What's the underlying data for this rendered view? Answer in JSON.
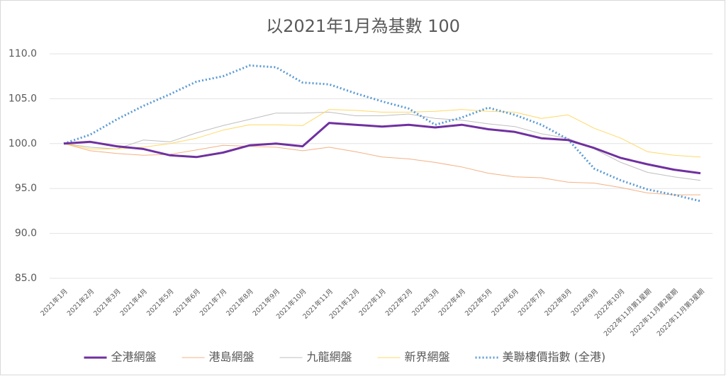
{
  "chart_data": {
    "type": "line",
    "title": "以2021年1月為基數 100",
    "categories": [
      "2021年1月",
      "2021年2月",
      "2021年3月",
      "2021年4月",
      "2021年5月",
      "2021年6月",
      "2021年7月",
      "2021年8月",
      "2021年9月",
      "2021年10月",
      "2021年11月",
      "2021年12月",
      "2022年1月",
      "2022年2月",
      "2022年3月",
      "2022年4月",
      "2022年5月",
      "2022年6月",
      "2022年7月",
      "2022年8月",
      "2022年9月",
      "2022年10月",
      "2022年11月第1星期",
      "2022年11月第2星期",
      "2022年11月第3星期"
    ],
    "series": [
      {
        "name": "全港網盤",
        "color": "#7030a0",
        "width": 3,
        "dash": "solid",
        "values": [
          100,
          100.2,
          99.7,
          99.4,
          98.7,
          98.5,
          99.0,
          99.8,
          100.0,
          99.7,
          102.3,
          102.1,
          101.9,
          102.1,
          101.8,
          102.1,
          101.6,
          101.3,
          100.6,
          100.4,
          99.5,
          98.4,
          97.7,
          97.1,
          96.7
        ]
      },
      {
        "name": "港島網盤",
        "color": "#f4b183",
        "width": 1,
        "dash": "solid",
        "values": [
          100,
          99.2,
          98.9,
          98.7,
          98.8,
          99.3,
          99.8,
          99.7,
          99.6,
          99.2,
          99.6,
          99.1,
          98.5,
          98.3,
          97.9,
          97.4,
          96.7,
          96.3,
          96.2,
          95.7,
          95.6,
          95.1,
          94.5,
          94.3,
          94.3
        ]
      },
      {
        "name": "九龍網盤",
        "color": "#bfbfbf",
        "width": 1,
        "dash": "solid",
        "values": [
          100,
          99.6,
          99.4,
          100.4,
          100.2,
          101.2,
          102.0,
          102.7,
          103.4,
          103.4,
          103.5,
          103.1,
          103.1,
          103.3,
          102.8,
          102.6,
          102.2,
          101.9,
          101.1,
          100.6,
          99.4,
          97.9,
          96.8,
          96.3,
          95.9
        ]
      },
      {
        "name": "新界網盤",
        "color": "#ffd966",
        "width": 1,
        "dash": "solid",
        "values": [
          100,
          99.4,
          99.4,
          99.6,
          100.0,
          100.6,
          101.5,
          102.1,
          102.1,
          102.0,
          103.8,
          103.7,
          103.5,
          103.5,
          103.6,
          103.8,
          103.6,
          103.5,
          102.8,
          103.2,
          101.7,
          100.6,
          99.1,
          98.7,
          98.5
        ]
      },
      {
        "name": "美聯樓價指數 (全港)",
        "color": "#5b9bd5",
        "width": 3,
        "dash": "dotted",
        "values": [
          100,
          101.0,
          102.7,
          104.2,
          105.5,
          106.9,
          107.5,
          108.7,
          108.5,
          106.8,
          106.6,
          105.6,
          104.7,
          103.9,
          102.1,
          102.9,
          104.0,
          103.2,
          102.1,
          100.5,
          97.2,
          95.9,
          94.9,
          94.3,
          93.6
        ]
      }
    ],
    "ylim": [
      85,
      110
    ],
    "yticks": [
      {
        "value": 85,
        "label": "85.0"
      },
      {
        "value": 90,
        "label": "90.0"
      },
      {
        "value": 95,
        "label": "95.0"
      },
      {
        "value": 100,
        "label": "100.0"
      },
      {
        "value": 105,
        "label": "105.0"
      },
      {
        "value": 110,
        "label": "110.0"
      }
    ],
    "grid": true,
    "legend": "bottom"
  }
}
